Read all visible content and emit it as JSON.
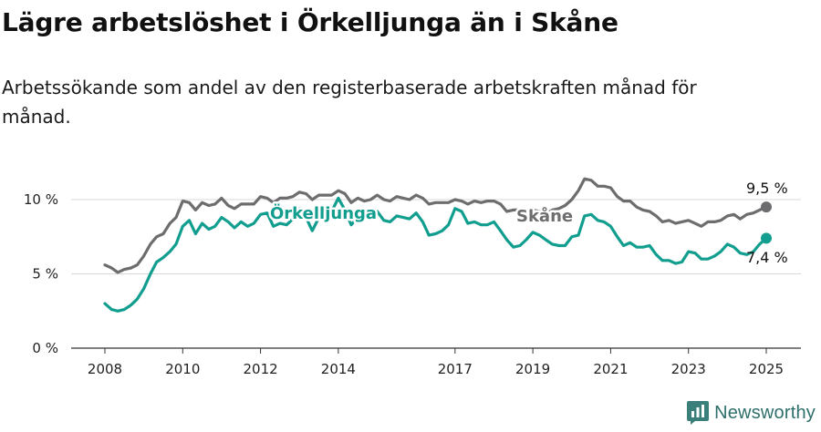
{
  "title": "Lägre arbetslöshet i Örkelljunga än i Skåne",
  "subtitle": "Arbetssökande som andel av den registerbaserade arbetskraften månad för månad.",
  "brand": {
    "name": "Newsworthy",
    "icon": "newsworthy-logo-icon",
    "color": "#3a7f7a"
  },
  "chart_data": {
    "type": "line",
    "x_ticks": [
      "2008",
      "2010",
      "2012",
      "2014",
      "2017",
      "2019",
      "2021",
      "2023",
      "2025"
    ],
    "x_tick_values": [
      2008.0,
      2010.0,
      2012.0,
      2014.0,
      2017.0,
      2019.0,
      2021.0,
      2023.0,
      2025.0
    ],
    "y_ticks": [
      "0 %",
      "5 %",
      "10 %"
    ],
    "y_tick_values": [
      0,
      5,
      10
    ],
    "ylim": [
      0,
      12
    ],
    "xlim": [
      2007.6,
      2025.9
    ],
    "grid": "horizontal",
    "series": [
      {
        "name": "Skåne",
        "color": "#6d6d6f",
        "end_label": "9,5 %",
        "points": [
          [
            2008.0,
            5.6
          ],
          [
            2008.17,
            5.4
          ],
          [
            2008.33,
            5.1
          ],
          [
            2008.5,
            5.3
          ],
          [
            2008.67,
            5.4
          ],
          [
            2008.83,
            5.6
          ],
          [
            2009.0,
            6.2
          ],
          [
            2009.17,
            7.0
          ],
          [
            2009.33,
            7.5
          ],
          [
            2009.5,
            7.7
          ],
          [
            2009.67,
            8.4
          ],
          [
            2009.83,
            8.8
          ],
          [
            2010.0,
            9.9
          ],
          [
            2010.17,
            9.8
          ],
          [
            2010.33,
            9.3
          ],
          [
            2010.5,
            9.8
          ],
          [
            2010.67,
            9.6
          ],
          [
            2010.83,
            9.7
          ],
          [
            2011.0,
            10.1
          ],
          [
            2011.17,
            9.6
          ],
          [
            2011.33,
            9.4
          ],
          [
            2011.5,
            9.7
          ],
          [
            2011.67,
            9.7
          ],
          [
            2011.83,
            9.7
          ],
          [
            2012.0,
            10.2
          ],
          [
            2012.17,
            10.1
          ],
          [
            2012.33,
            9.8
          ],
          [
            2012.5,
            10.1
          ],
          [
            2012.67,
            10.1
          ],
          [
            2012.83,
            10.2
          ],
          [
            2013.0,
            10.5
          ],
          [
            2013.17,
            10.4
          ],
          [
            2013.33,
            10.0
          ],
          [
            2013.5,
            10.3
          ],
          [
            2013.67,
            10.3
          ],
          [
            2013.83,
            10.3
          ],
          [
            2014.0,
            10.6
          ],
          [
            2014.17,
            10.4
          ],
          [
            2014.33,
            9.8
          ],
          [
            2014.5,
            10.1
          ],
          [
            2014.67,
            9.9
          ],
          [
            2014.83,
            10.0
          ],
          [
            2015.0,
            10.3
          ],
          [
            2015.17,
            10.0
          ],
          [
            2015.33,
            9.9
          ],
          [
            2015.5,
            10.2
          ],
          [
            2015.67,
            10.1
          ],
          [
            2015.83,
            10.0
          ],
          [
            2016.0,
            10.3
          ],
          [
            2016.17,
            10.1
          ],
          [
            2016.33,
            9.7
          ],
          [
            2016.5,
            9.8
          ],
          [
            2016.67,
            9.8
          ],
          [
            2016.83,
            9.8
          ],
          [
            2017.0,
            10.0
          ],
          [
            2017.17,
            9.9
          ],
          [
            2017.33,
            9.7
          ],
          [
            2017.5,
            9.9
          ],
          [
            2017.67,
            9.8
          ],
          [
            2017.83,
            9.9
          ],
          [
            2018.0,
            9.9
          ],
          [
            2018.17,
            9.7
          ],
          [
            2018.33,
            9.2
          ],
          [
            2018.5,
            9.3
          ],
          [
            2018.67,
            9.3
          ],
          [
            2018.83,
            9.2
          ],
          [
            2019.0,
            9.3
          ],
          [
            2019.17,
            9.2
          ],
          [
            2019.33,
            9.0
          ],
          [
            2019.5,
            9.3
          ],
          [
            2019.67,
            9.4
          ],
          [
            2019.83,
            9.6
          ],
          [
            2020.0,
            10.0
          ],
          [
            2020.17,
            10.6
          ],
          [
            2020.33,
            11.4
          ],
          [
            2020.5,
            11.3
          ],
          [
            2020.67,
            10.9
          ],
          [
            2020.83,
            10.9
          ],
          [
            2021.0,
            10.8
          ],
          [
            2021.17,
            10.2
          ],
          [
            2021.33,
            9.9
          ],
          [
            2021.5,
            9.9
          ],
          [
            2021.67,
            9.5
          ],
          [
            2021.83,
            9.3
          ],
          [
            2022.0,
            9.2
          ],
          [
            2022.17,
            8.9
          ],
          [
            2022.33,
            8.5
          ],
          [
            2022.5,
            8.6
          ],
          [
            2022.67,
            8.4
          ],
          [
            2022.83,
            8.5
          ],
          [
            2023.0,
            8.6
          ],
          [
            2023.17,
            8.4
          ],
          [
            2023.33,
            8.2
          ],
          [
            2023.5,
            8.5
          ],
          [
            2023.67,
            8.5
          ],
          [
            2023.83,
            8.6
          ],
          [
            2024.0,
            8.9
          ],
          [
            2024.17,
            9.0
          ],
          [
            2024.33,
            8.7
          ],
          [
            2024.5,
            9.0
          ],
          [
            2024.67,
            9.1
          ],
          [
            2024.83,
            9.3
          ],
          [
            2025.0,
            9.5
          ]
        ]
      },
      {
        "name": "Örkelljunga",
        "color": "#129e8f",
        "end_label": "7,4 %",
        "points": [
          [
            2008.0,
            3.0
          ],
          [
            2008.17,
            2.6
          ],
          [
            2008.33,
            2.5
          ],
          [
            2008.5,
            2.6
          ],
          [
            2008.67,
            2.9
          ],
          [
            2008.83,
            3.3
          ],
          [
            2009.0,
            4.0
          ],
          [
            2009.17,
            5.0
          ],
          [
            2009.33,
            5.8
          ],
          [
            2009.5,
            6.1
          ],
          [
            2009.67,
            6.5
          ],
          [
            2009.83,
            7.0
          ],
          [
            2010.0,
            8.2
          ],
          [
            2010.17,
            8.6
          ],
          [
            2010.33,
            7.7
          ],
          [
            2010.5,
            8.4
          ],
          [
            2010.67,
            8.0
          ],
          [
            2010.83,
            8.2
          ],
          [
            2011.0,
            8.8
          ],
          [
            2011.17,
            8.5
          ],
          [
            2011.33,
            8.1
          ],
          [
            2011.5,
            8.5
          ],
          [
            2011.67,
            8.2
          ],
          [
            2011.83,
            8.4
          ],
          [
            2012.0,
            9.0
          ],
          [
            2012.17,
            9.1
          ],
          [
            2012.33,
            8.2
          ],
          [
            2012.5,
            8.4
          ],
          [
            2012.67,
            8.3
          ],
          [
            2012.83,
            8.7
          ],
          [
            2013.0,
            9.4
          ],
          [
            2013.17,
            8.8
          ],
          [
            2013.33,
            7.9
          ],
          [
            2013.5,
            8.8
          ],
          [
            2013.67,
            9.2
          ],
          [
            2013.83,
            9.2
          ],
          [
            2014.0,
            10.1
          ],
          [
            2014.17,
            9.3
          ],
          [
            2014.33,
            8.3
          ],
          [
            2014.5,
            8.8
          ],
          [
            2014.67,
            8.7
          ],
          [
            2014.83,
            9.0
          ],
          [
            2015.0,
            9.2
          ],
          [
            2015.17,
            8.6
          ],
          [
            2015.33,
            8.5
          ],
          [
            2015.5,
            8.9
          ],
          [
            2015.67,
            8.8
          ],
          [
            2015.83,
            8.7
          ],
          [
            2016.0,
            9.1
          ],
          [
            2016.17,
            8.5
          ],
          [
            2016.33,
            7.6
          ],
          [
            2016.5,
            7.7
          ],
          [
            2016.67,
            7.9
          ],
          [
            2016.83,
            8.3
          ],
          [
            2017.0,
            9.4
          ],
          [
            2017.17,
            9.2
          ],
          [
            2017.33,
            8.4
          ],
          [
            2017.5,
            8.5
          ],
          [
            2017.67,
            8.3
          ],
          [
            2017.83,
            8.3
          ],
          [
            2018.0,
            8.5
          ],
          [
            2018.17,
            7.9
          ],
          [
            2018.33,
            7.3
          ],
          [
            2018.5,
            6.8
          ],
          [
            2018.67,
            6.9
          ],
          [
            2018.83,
            7.3
          ],
          [
            2019.0,
            7.8
          ],
          [
            2019.17,
            7.6
          ],
          [
            2019.33,
            7.3
          ],
          [
            2019.5,
            7.0
          ],
          [
            2019.67,
            6.9
          ],
          [
            2019.83,
            6.9
          ],
          [
            2020.0,
            7.5
          ],
          [
            2020.17,
            7.6
          ],
          [
            2020.33,
            8.9
          ],
          [
            2020.5,
            9.0
          ],
          [
            2020.67,
            8.6
          ],
          [
            2020.83,
            8.5
          ],
          [
            2021.0,
            8.2
          ],
          [
            2021.17,
            7.5
          ],
          [
            2021.33,
            6.9
          ],
          [
            2021.5,
            7.1
          ],
          [
            2021.67,
            6.8
          ],
          [
            2021.83,
            6.8
          ],
          [
            2022.0,
            6.9
          ],
          [
            2022.17,
            6.3
          ],
          [
            2022.33,
            5.9
          ],
          [
            2022.5,
            5.9
          ],
          [
            2022.67,
            5.7
          ],
          [
            2022.83,
            5.8
          ],
          [
            2023.0,
            6.5
          ],
          [
            2023.17,
            6.4
          ],
          [
            2023.33,
            6.0
          ],
          [
            2023.5,
            6.0
          ],
          [
            2023.67,
            6.2
          ],
          [
            2023.83,
            6.5
          ],
          [
            2024.0,
            7.0
          ],
          [
            2024.17,
            6.8
          ],
          [
            2024.33,
            6.4
          ],
          [
            2024.5,
            6.3
          ],
          [
            2024.67,
            6.5
          ],
          [
            2024.83,
            7.0
          ],
          [
            2025.0,
            7.4
          ]
        ]
      }
    ]
  }
}
